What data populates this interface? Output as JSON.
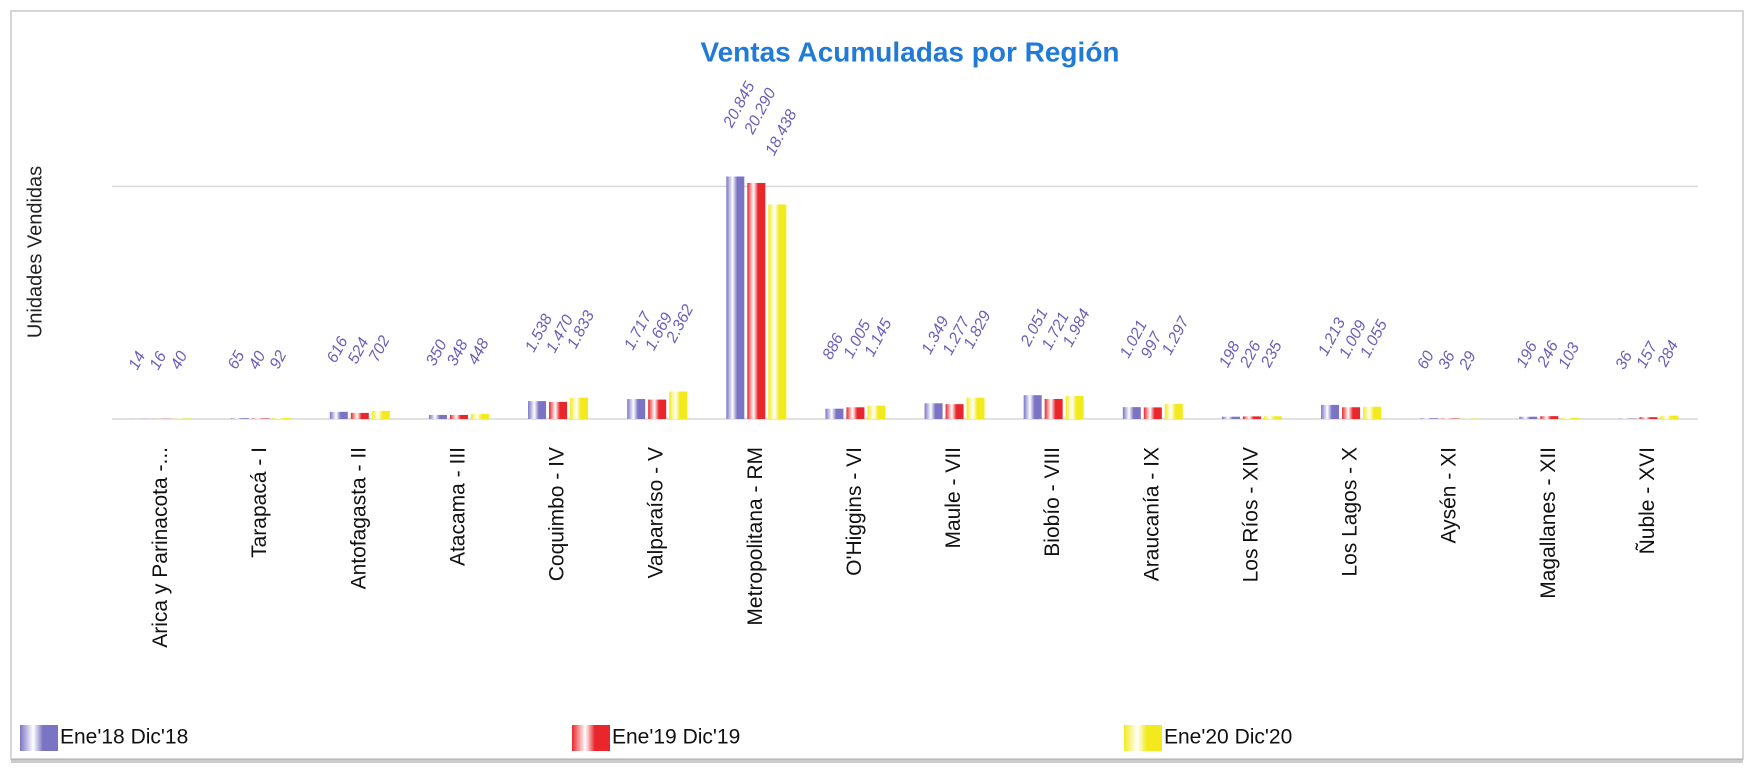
{
  "chart_data": {
    "type": "bar",
    "title": "Ventas Acumuladas por Región",
    "y_label": "Unidades Vendidas",
    "categories": [
      "Arica y Parinacota -...",
      "Tarapacá - I",
      "Antofagasta - II",
      "Atacama - III",
      "Coquimbo - IV",
      "Valparaíso - V",
      "Metropolitana - RM",
      "O'Higgins - VI",
      "Maule - VII",
      "Biobío - VIII",
      "Araucanía - IX",
      "Los Ríos - XIV",
      "Los Lagos - X",
      "Aysén - XI",
      "Magallanes - XII",
      "Ñuble - XVI"
    ],
    "series": [
      {
        "name": "Ene'18 Dic'18",
        "color": "#7b74c4",
        "values": [
          14,
          65,
          616,
          350,
          1538,
          1717,
          20845,
          886,
          1349,
          2051,
          1021,
          198,
          1213,
          60,
          196,
          36
        ],
        "value_labels": [
          "14",
          "65",
          "616",
          "350",
          "1.538",
          "1.717",
          "20.845",
          "886",
          "1.349",
          "2.051",
          "1.021",
          "198",
          "1.213",
          "60",
          "196",
          "36"
        ]
      },
      {
        "name": "Ene'19 Dic'19",
        "color": "#e8262b",
        "values": [
          16,
          40,
          524,
          348,
          1470,
          1669,
          20290,
          1005,
          1277,
          1721,
          997,
          226,
          1009,
          36,
          246,
          157
        ],
        "value_labels": [
          "16",
          "40",
          "524",
          "348",
          "1.470",
          "1.669",
          "20.290",
          "1.005",
          "1.277",
          "1.721",
          "997",
          "226",
          "1.009",
          "36",
          "246",
          "157"
        ]
      },
      {
        "name": "Ene'20 Dic'20",
        "color": "#f2ea1c",
        "values": [
          40,
          92,
          702,
          448,
          1833,
          2362,
          18438,
          1145,
          1829,
          1984,
          1297,
          235,
          1055,
          29,
          103,
          284
        ],
        "value_labels": [
          "40",
          "92",
          "702",
          "448",
          "1.833",
          "2.362",
          "18.438",
          "1.145",
          "1.829",
          "1.984",
          "1.297",
          "235",
          "1.055",
          "29",
          "103",
          "284"
        ]
      }
    ],
    "ylim": [
      0,
      30000
    ],
    "yticks": [
      0,
      20000
    ],
    "grid": true,
    "legend": "bottom"
  }
}
